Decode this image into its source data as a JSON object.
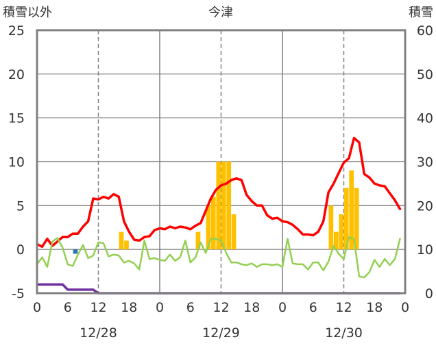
{
  "chart_data": {
    "type": "line",
    "title": "今津",
    "left_axis": {
      "label": "積雪以外",
      "ticks": [
        25,
        20,
        15,
        10,
        5,
        0,
        -5
      ],
      "range": [
        -5,
        25
      ]
    },
    "right_axis": {
      "label": "積雪",
      "ticks": [
        60,
        50,
        40,
        30,
        20,
        10,
        0
      ],
      "range": [
        0,
        60
      ]
    },
    "x_axis": {
      "range": [
        0,
        72
      ],
      "hour_ticks": [
        0,
        6,
        12,
        18,
        0,
        6,
        12,
        18,
        0,
        6,
        12,
        18,
        0
      ],
      "date_labels": [
        {
          "text": "12/28",
          "x": 12
        },
        {
          "text": "12/29",
          "x": 36
        },
        {
          "text": "12/30",
          "x": 60
        }
      ]
    },
    "series": [
      {
        "axis": "left",
        "color": "#ff0000",
        "x": [
          0,
          1,
          2,
          3,
          4,
          5,
          6,
          7,
          8,
          9,
          10,
          11,
          12,
          13,
          14,
          15,
          16,
          17,
          18,
          19,
          20,
          21,
          22,
          23,
          24,
          25,
          26,
          27,
          28,
          29,
          30,
          31,
          32,
          33,
          34,
          35,
          36,
          37,
          38,
          39,
          40,
          41,
          42,
          43,
          44,
          45,
          46,
          47,
          48,
          49,
          50,
          51,
          52,
          53,
          54,
          55,
          56,
          57,
          58,
          59,
          60,
          61,
          62,
          63,
          64,
          65,
          66,
          67,
          68,
          69,
          70,
          71
        ],
        "values": [
          0.6,
          0.3,
          1.2,
          0.4,
          0.9,
          1.4,
          1.4,
          1.8,
          1.8,
          2.6,
          3.2,
          5.8,
          5.7,
          6.0,
          5.8,
          6.3,
          6.0,
          3.2,
          2.0,
          1.1,
          1.0,
          1.4,
          1.5,
          2.2,
          2.4,
          2.3,
          2.6,
          2.4,
          2.6,
          2.5,
          2.3,
          2.7,
          3.0,
          4.4,
          5.8,
          6.8,
          7.3,
          7.5,
          7.9,
          8.1,
          7.9,
          6.2,
          5.5,
          5.0,
          5.0,
          3.9,
          3.5,
          3.6,
          3.2,
          3.1,
          2.8,
          2.3,
          1.7,
          1.7,
          1.6,
          2.0,
          3.2,
          6.5,
          7.5,
          8.7,
          9.9,
          10.4,
          12.7,
          12.2,
          8.6,
          8.2,
          7.5,
          7.3,
          7.2,
          6.4,
          5.6,
          4.6
        ]
      },
      {
        "axis": "left",
        "color": "#92d050",
        "x": [
          0,
          1,
          2,
          3,
          4,
          5,
          6,
          7,
          8,
          9,
          10,
          11,
          12,
          13,
          14,
          15,
          16,
          17,
          18,
          19,
          20,
          21,
          22,
          23,
          24,
          25,
          26,
          27,
          28,
          29,
          30,
          31,
          32,
          33,
          34,
          35,
          36,
          37,
          38,
          39,
          40,
          41,
          42,
          43,
          44,
          45,
          46,
          47,
          48,
          49,
          50,
          51,
          52,
          53,
          54,
          55,
          56,
          57,
          58,
          59,
          60,
          61,
          62,
          63,
          64,
          65,
          66,
          67,
          68,
          69,
          70,
          71
        ],
        "values": [
          -1.7,
          -0.9,
          -2.0,
          0.9,
          1.3,
          0.2,
          -1.7,
          -1.9,
          -0.6,
          0.5,
          -1.0,
          -0.7,
          0.8,
          0.7,
          -0.8,
          -0.6,
          -0.7,
          -1.5,
          -1.3,
          -1.6,
          -2.3,
          1.0,
          -1.1,
          -1.0,
          -1.2,
          -1.3,
          -0.6,
          -1.3,
          -0.9,
          1.0,
          -1.5,
          -0.9,
          0.8,
          -0.4,
          1.2,
          1.2,
          1.0,
          -0.4,
          -1.5,
          -1.5,
          -1.7,
          -1.8,
          -1.6,
          -2.0,
          -1.7,
          -1.7,
          -1.8,
          -1.7,
          -2.0,
          1.2,
          -1.6,
          -1.7,
          -1.7,
          -2.3,
          -1.5,
          -1.5,
          -2.4,
          -1.4,
          0.4,
          -0.5,
          -1.1,
          1.4,
          1.2,
          -3.1,
          -3.2,
          -2.6,
          -1.2,
          -2.0,
          -1.1,
          -1.8,
          -1.1,
          1.2
        ]
      },
      {
        "axis": "left",
        "color": "#7030a0",
        "x": [
          0,
          5,
          6,
          11,
          12,
          71
        ],
        "values": [
          -4.0,
          -4.0,
          -4.6,
          -4.6,
          -5.0,
          -5.0
        ]
      }
    ],
    "bars": [
      {
        "axis": "left",
        "color": "#ffc000",
        "x": [
          16,
          17,
          31,
          33,
          34,
          35,
          36,
          37,
          38,
          57,
          58,
          59,
          60,
          61,
          62
        ],
        "values": [
          2.0,
          1.0,
          2.0,
          5.0,
          6.0,
          10.0,
          10.0,
          10.0,
          4.0,
          5.0,
          2.0,
          4.0,
          7.0,
          9.0,
          7.0
        ]
      },
      {
        "axis": "left",
        "color": "#2e75b6",
        "x": [
          7
        ],
        "values": [
          -0.5
        ]
      }
    ],
    "grid": {
      "vertical_solid_at": [
        24,
        48
      ],
      "vertical_dashed_at": [
        12,
        36,
        60
      ]
    }
  }
}
